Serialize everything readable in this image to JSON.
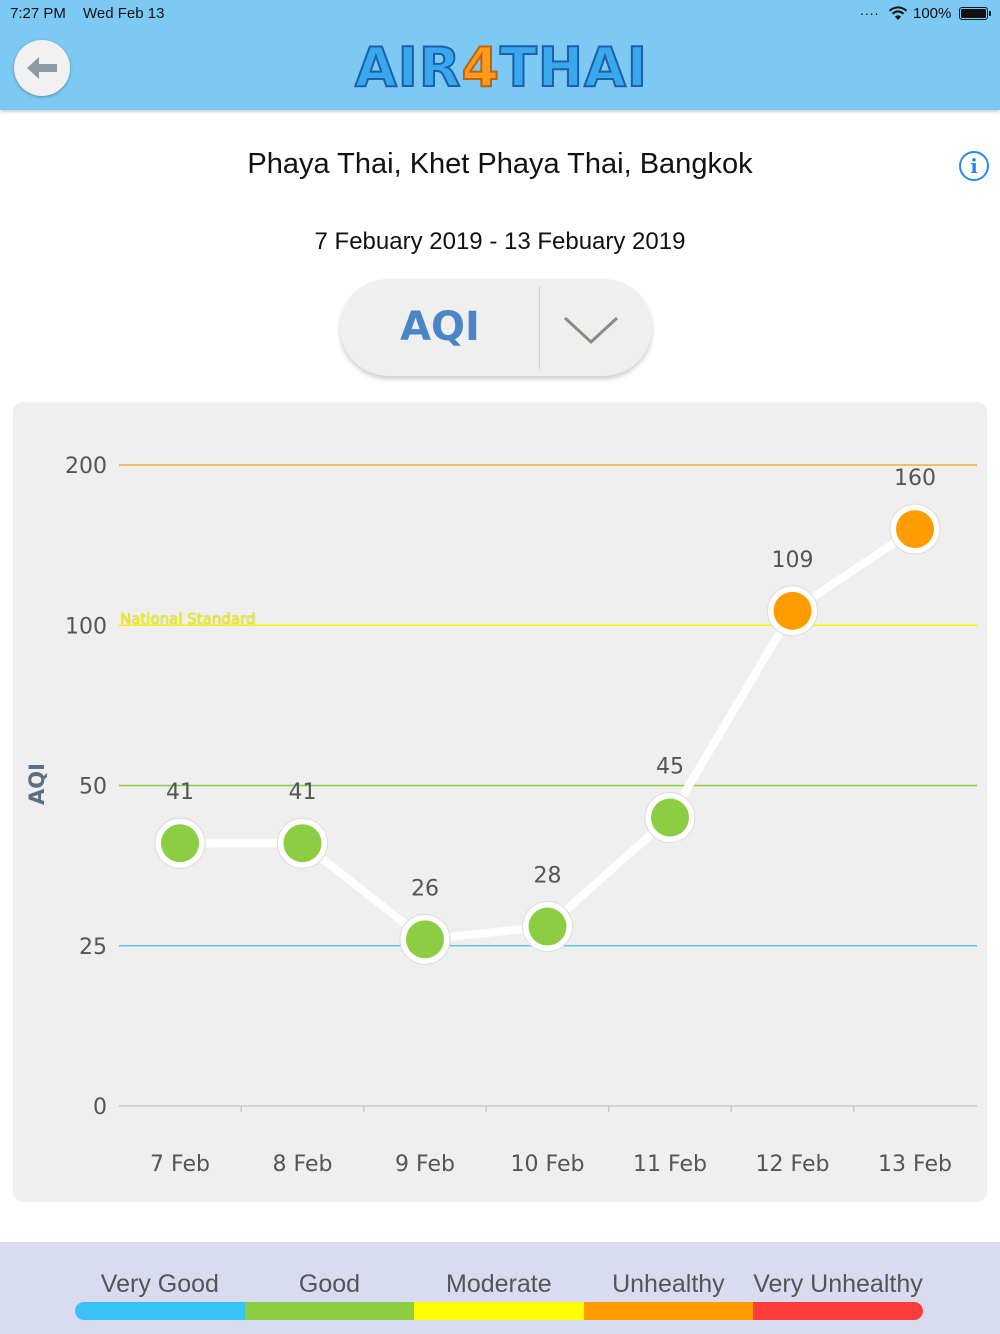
{
  "status_bar": {
    "time": "7:27 PM",
    "date": "Wed Feb 13",
    "battery": "100%"
  },
  "header": {
    "logo_part1": "AIR",
    "logo_part2": "4",
    "logo_part3": "THAI"
  },
  "location": "Phaya Thai, Khet Phaya Thai, Bangkok",
  "date_range": "7 Febuary 2019 - 13 Febuary 2019",
  "selector": {
    "value": "AQI"
  },
  "chart_data": {
    "type": "line",
    "ylabel": "AQI",
    "x": [
      "7 Feb",
      "8 Feb",
      "9 Feb",
      "10 Feb",
      "11 Feb",
      "12 Feb",
      "13 Feb"
    ],
    "series": [
      {
        "values": [
          41,
          41,
          26,
          28,
          45,
          109,
          160
        ],
        "colors": [
          "#8dcd44",
          "#8dcd44",
          "#8dcd44",
          "#8dcd44",
          "#8dcd44",
          "#ff9d00",
          "#ff9d00"
        ]
      }
    ],
    "y_ticks": [
      0,
      25,
      50,
      100,
      200
    ],
    "reference_lines": [
      {
        "value": 25,
        "color": "#5ec5f0"
      },
      {
        "value": 50,
        "color": "#8dcd44"
      },
      {
        "value": 100,
        "color": "#f4f20a",
        "label": "National Standard"
      },
      {
        "value": 200,
        "color": "#f5b12b"
      }
    ],
    "grid": false
  },
  "legend": {
    "items": [
      {
        "label": "Very Good",
        "color": "#38c2f5"
      },
      {
        "label": "Good",
        "color": "#8dcd44"
      },
      {
        "label": "Moderate",
        "color": "#ffff00"
      },
      {
        "label": "Unhealthy",
        "color": "#ff9d00"
      },
      {
        "label": "Very Unhealthy",
        "color": "#ff3b3b"
      }
    ]
  }
}
